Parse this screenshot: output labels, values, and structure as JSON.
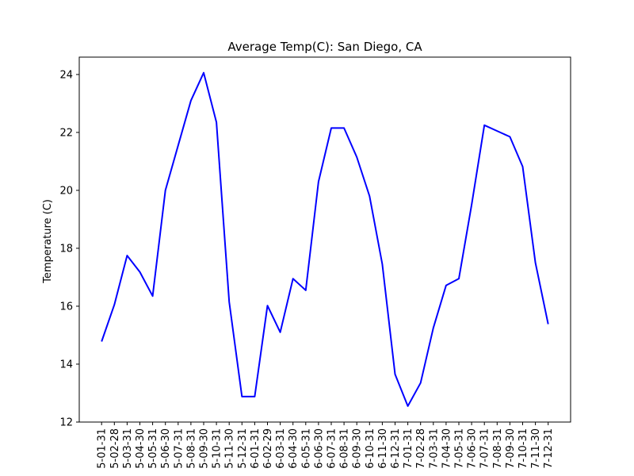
{
  "chart_data": {
    "type": "line",
    "title": "Average Temp(C): San Diego, CA",
    "xlabel": "",
    "ylabel": "Temperature (C)",
    "ylim": [
      12,
      24.6
    ],
    "yticks": [
      12,
      14,
      16,
      18,
      20,
      22,
      24
    ],
    "grid": false,
    "legend": "none",
    "line_color": "#0000ff",
    "categories": [
      "5-01-31",
      "5-02-28",
      "5-03-31",
      "5-04-30",
      "5-05-31",
      "5-06-30",
      "5-07-31",
      "5-08-31",
      "5-09-30",
      "5-10-31",
      "5-11-30",
      "5-12-31",
      "6-01-31",
      "6-02-29",
      "6-03-31",
      "6-04-30",
      "6-05-31",
      "6-06-30",
      "6-07-31",
      "6-08-31",
      "6-09-30",
      "6-10-31",
      "6-11-30",
      "6-12-31",
      "7-01-31",
      "7-02-28",
      "7-03-31",
      "7-04-30",
      "7-05-31",
      "7-06-30",
      "7-07-31",
      "7-08-31",
      "7-09-30",
      "7-10-31",
      "7-11-30",
      "7-12-31"
    ],
    "series": [
      {
        "values": [
          14.78,
          16.05,
          17.75,
          17.18,
          16.35,
          20.0,
          21.55,
          23.1,
          24.06,
          22.35,
          16.15,
          12.88,
          12.88,
          16.02,
          15.1,
          16.95,
          16.55,
          20.3,
          22.15,
          22.15,
          21.15,
          19.8,
          17.45,
          13.65,
          12.55,
          13.35,
          15.25,
          16.72,
          16.95,
          19.5,
          22.25,
          22.05,
          21.85,
          20.82,
          17.5,
          15.38
        ]
      }
    ]
  }
}
